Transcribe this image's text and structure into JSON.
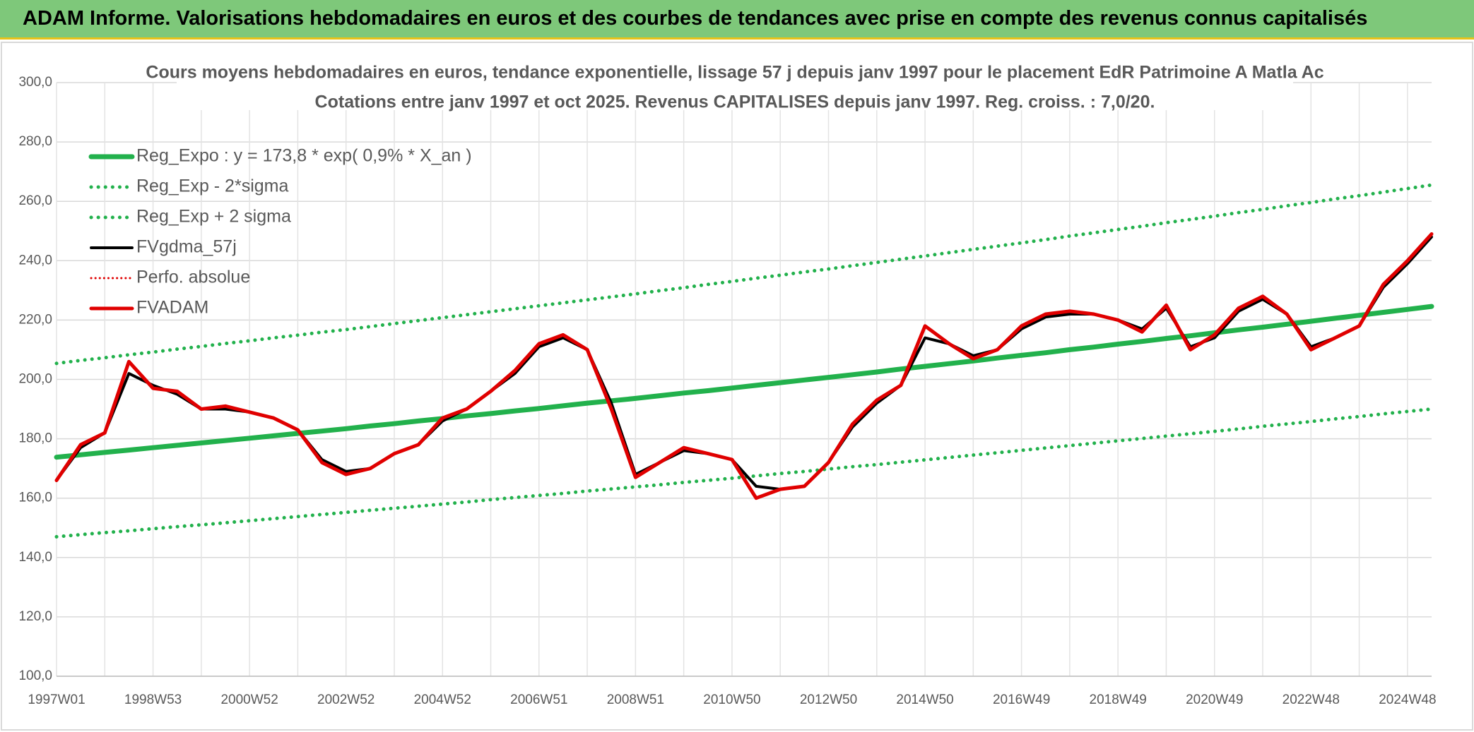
{
  "header": "ADAM Informe. Valorisations hebdomadaires en euros et des courbes de tendances avec prise en compte des revenus connus capitalisés",
  "chart_data": {
    "type": "line",
    "title": "Cours moyens hebdomadaires en euros, tendance exponentielle, lissage 57 j depuis janv 1997 pour le placement EdR Patrimoine A Matla Ac",
    "subtitle": "Cotations entre janv 1997 et oct 2025. Revenus CAPITALISES depuis janv 1997. Reg. croiss. : 7,0/20.",
    "categories": [
      "1997W01",
      null,
      null,
      null,
      "1998W53",
      null,
      null,
      null,
      "2000W52",
      null,
      null,
      null,
      "2002W52",
      null,
      null,
      null,
      "2004W52",
      null,
      null,
      null,
      "2006W51",
      null,
      null,
      null,
      "2008W51",
      null,
      null,
      null,
      "2010W50",
      null,
      null,
      null,
      "2012W50",
      null,
      null,
      null,
      "2014W50",
      null,
      null,
      null,
      "2016W49",
      null,
      null,
      null,
      "2018W49",
      null,
      null,
      null,
      "2020W49",
      null,
      null,
      null,
      "2022W48",
      null,
      null,
      null,
      "2024W48",
      null
    ],
    "ylim": [
      100,
      300
    ],
    "yticks": [
      {
        "value": 100,
        "label": "100,0"
      },
      {
        "value": 120,
        "label": "120,0"
      },
      {
        "value": 140,
        "label": "140,0"
      },
      {
        "value": 160,
        "label": "160,0"
      },
      {
        "value": 180,
        "label": "180,0"
      },
      {
        "value": 200,
        "label": "200,0"
      },
      {
        "value": 220,
        "label": "220,0"
      },
      {
        "value": 240,
        "label": "240,0"
      },
      {
        "value": 260,
        "label": "260,0"
      },
      {
        "value": 280,
        "label": "280,0"
      },
      {
        "value": 300,
        "label": "300,0"
      }
    ],
    "grid": true,
    "legend": "top-left",
    "series": [
      {
        "name": "Reg_Expo : y = 173,8 * exp( 0,9% *  X_an )",
        "color": "#22b14c",
        "style": "solid",
        "width": 7,
        "values": [
          173.8,
          174.6,
          175.4,
          176.2,
          177.0,
          177.8,
          178.6,
          179.4,
          180.2,
          181.0,
          181.8,
          182.6,
          183.4,
          184.3,
          185.1,
          186.0,
          186.8,
          187.7,
          188.5,
          189.4,
          190.2,
          191.1,
          192.0,
          192.8,
          193.6,
          194.5,
          195.4,
          196.2,
          197.1,
          198.0,
          198.9,
          199.8,
          200.7,
          201.6,
          202.5,
          203.5,
          204.4,
          205.3,
          206.2,
          207.2,
          208.1,
          209.0,
          210.0,
          210.9,
          211.9,
          212.8,
          213.8,
          214.7,
          215.7,
          216.7,
          217.6,
          218.6,
          219.6,
          220.6,
          221.6,
          222.6,
          223.6,
          224.6
        ]
      },
      {
        "name": "Reg_Exp - 2*sigma",
        "color": "#22b14c",
        "style": "dotted",
        "width": 5,
        "values": [
          147.0,
          147.7,
          148.4,
          149.0,
          149.7,
          150.4,
          151.0,
          151.7,
          152.4,
          153.1,
          153.8,
          154.5,
          155.2,
          155.9,
          156.6,
          157.3,
          158.0,
          158.7,
          159.5,
          160.2,
          160.9,
          161.6,
          162.4,
          163.1,
          163.8,
          164.5,
          165.3,
          166.0,
          166.7,
          167.5,
          168.3,
          169.0,
          169.8,
          170.6,
          171.3,
          172.1,
          172.9,
          173.7,
          174.5,
          175.3,
          176.1,
          176.9,
          177.7,
          178.5,
          179.3,
          180.1,
          180.9,
          181.7,
          182.5,
          183.3,
          184.2,
          185.0,
          185.8,
          186.7,
          187.5,
          188.4,
          189.2,
          190.0
        ]
      },
      {
        "name": "Reg_Exp + 2 sigma",
        "color": "#22b14c",
        "style": "dotted",
        "width": 5,
        "values": [
          205.4,
          206.4,
          207.3,
          208.3,
          209.2,
          210.2,
          211.1,
          212.1,
          213.0,
          214.0,
          214.9,
          215.9,
          216.8,
          217.8,
          218.8,
          219.8,
          220.8,
          221.8,
          222.8,
          223.8,
          224.8,
          225.8,
          226.8,
          227.8,
          228.8,
          229.9,
          230.9,
          232.0,
          233.0,
          234.1,
          235.1,
          236.2,
          237.2,
          238.3,
          239.4,
          240.5,
          241.6,
          242.7,
          243.8,
          244.9,
          246.0,
          247.1,
          248.3,
          249.4,
          250.5,
          251.6,
          252.8,
          253.9,
          255.0,
          256.2,
          257.3,
          258.5,
          259.6,
          260.8,
          261.9,
          263.1,
          264.3,
          265.5
        ]
      },
      {
        "name": "FVgdma_57j",
        "color": "#000000",
        "style": "solid",
        "width": 4,
        "values": [
          166,
          177,
          182,
          202,
          198,
          195,
          190,
          190,
          189,
          187,
          183,
          173,
          169,
          170,
          175,
          178,
          186,
          190,
          196,
          202,
          211,
          214,
          210,
          192,
          168,
          172,
          176,
          175,
          173,
          164,
          163,
          164,
          172,
          184,
          192,
          198,
          214,
          212,
          208,
          210,
          217,
          221,
          222,
          222,
          220,
          217,
          224,
          211,
          214,
          223,
          227,
          222,
          211,
          214,
          218,
          231,
          239,
          248
        ]
      },
      {
        "name": "Perfo. absolue",
        "color": "#e00000",
        "style": "dotted",
        "width": 3,
        "values": [
          166,
          178,
          182,
          206,
          197,
          196,
          190,
          191,
          189,
          187,
          183,
          172,
          168,
          170,
          175,
          178,
          187,
          190,
          196,
          203,
          212,
          215,
          210,
          190,
          167,
          172,
          177,
          175,
          173,
          160,
          163,
          164,
          172,
          185,
          193,
          198,
          218,
          212,
          207,
          210,
          218,
          222,
          223,
          222,
          220,
          216,
          225,
          210,
          215,
          224,
          228,
          222,
          210,
          214,
          218,
          232,
          240,
          249
        ]
      },
      {
        "name": "FVADAM",
        "color": "#e00000",
        "style": "solid",
        "width": 5,
        "values": [
          166,
          178,
          182,
          206,
          197,
          196,
          190,
          191,
          189,
          187,
          183,
          172,
          168,
          170,
          175,
          178,
          187,
          190,
          196,
          203,
          212,
          215,
          210,
          190,
          167,
          172,
          177,
          175,
          173,
          160,
          163,
          164,
          172,
          185,
          193,
          198,
          218,
          212,
          207,
          210,
          218,
          222,
          223,
          222,
          220,
          216,
          225,
          210,
          215,
          224,
          228,
          222,
          210,
          214,
          218,
          232,
          240,
          249
        ]
      }
    ]
  }
}
